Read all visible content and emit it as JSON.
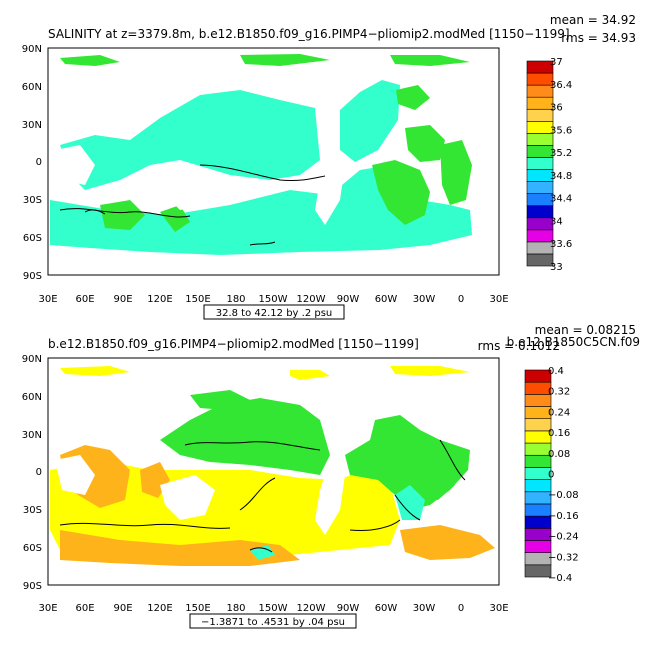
{
  "panels": [
    {
      "title": "SALINITY at z=3379.8m, b.e12.B1850.f09_g16.PIMP4−pliomip2.modMed [1150−1199]",
      "stat_mean": "mean = 34.92",
      "stat_rms": "rms = 34.93",
      "range_label": "32.8 to 42.12 by .2 psu",
      "lat_labels": [
        "90N",
        "60N",
        "30N",
        "0",
        "30S",
        "60S",
        "90S"
      ],
      "lon_labels": [
        "30E",
        "60E",
        "90E",
        "120E",
        "150E",
        "180",
        "150W",
        "120W",
        "90W",
        "60W",
        "30W",
        "0",
        "30E"
      ],
      "colorbar": {
        "colors": [
          "#666666",
          "#b3b3b3",
          "#e600e6",
          "#9900cc",
          "#0000cc",
          "#1a80ff",
          "#33b3ff",
          "#00e6ff",
          "#33ffcc",
          "#33e633",
          "#99ff33",
          "#ffff00",
          "#ffd24d",
          "#ffb31a",
          "#ff8c1a",
          "#ff4d00",
          "#cc0000"
        ],
        "labels": [
          "33",
          "33.6",
          "34",
          "34.4",
          "34.8",
          "35.2",
          "35.6",
          "36",
          "36.4",
          "37"
        ]
      }
    },
    {
      "title": "b.e12.B1850.f09_g16.PIMP4−pliomip2.modMed [1150−1199]",
      "stat_mean": "mean = 0.08215",
      "stat_rms": "rms = 0.1012",
      "stat_case": "b.e12.B1850C5CN.f09",
      "range_label": "−1.3871 to .4531 by .04 psu",
      "lat_labels": [
        "90N",
        "60N",
        "30N",
        "0",
        "30S",
        "60S",
        "90S"
      ],
      "lon_labels": [
        "30E",
        "60E",
        "90E",
        "120E",
        "150E",
        "180",
        "150W",
        "120W",
        "90W",
        "60W",
        "30W",
        "0",
        "30E"
      ],
      "colorbar": {
        "colors": [
          "#666666",
          "#b3b3b3",
          "#e600e6",
          "#9900cc",
          "#0000cc",
          "#1a80ff",
          "#33b3ff",
          "#00e6ff",
          "#33ffcc",
          "#33e633",
          "#99ff33",
          "#ffff00",
          "#ffd24d",
          "#ffb31a",
          "#ff8c1a",
          "#ff4d00",
          "#cc0000"
        ],
        "labels": [
          "−0.4",
          "−0.32",
          "−0.24",
          "−0.16",
          "−0.08",
          "0",
          "0.08",
          "0.16",
          "0.24",
          "0.32",
          "0.4"
        ]
      }
    }
  ]
}
